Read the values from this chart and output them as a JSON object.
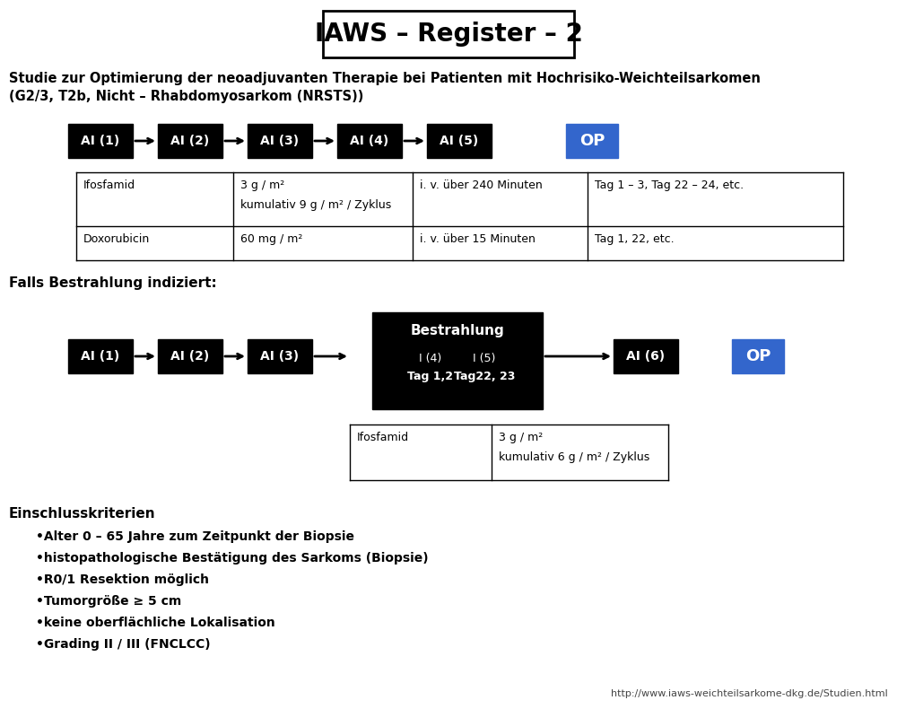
{
  "title": "IAWS – Register – 2",
  "subtitle_line1": "Studie zur Optimierung der neoadjuvanten Therapie bei Patienten mit Hochrisiko-Weichteilsarkomen",
  "subtitle_line2": "(G2/3, T2b, Nicht – Rhabdomyosarkom (NRSTS))",
  "background_color": "#ffffff",
  "scheme1_boxes": [
    "AI (1)",
    "AI (2)",
    "AI (3)",
    "AI (4)",
    "AI (5)"
  ],
  "scheme1_op": "OP",
  "table1_rows": [
    [
      "Ifosfamid",
      "3 g / m²",
      "kumulativ 9 g / m² / Zyklus",
      "i. v. über 240 Minuten",
      "Tag 1 – 3, Tag 22 – 24, etc."
    ],
    [
      "Doxorubicin",
      "60 mg / m²",
      "",
      "i. v. über 15 Minuten",
      "Tag 1, 22, etc."
    ]
  ],
  "falls_text": "Falls Bestrahlung indiziert:",
  "scheme2_boxes": [
    "AI (1)",
    "AI (2)",
    "AI (3)"
  ],
  "bestrahlung_title": "Bestrahlung",
  "scheme2_box_ai6": "AI (6)",
  "scheme2_op": "OP",
  "table2_row": [
    "Ifosfamid",
    "3 g / m²",
    "kumulativ 6 g / m² / Zyklus"
  ],
  "einschluss_title": "Einschlusskriterien",
  "einschluss_items": [
    "Alter 0 – 65 Jahre zum Zeitpunkt der Biopsie",
    "histopathologische Bestätigung des Sarkoms (Biopsie)",
    "R0/1 Resektion möglich",
    "Tumorgröße ≥ 5 cm",
    "keine oberflächliche Lokalisation",
    "Grading II / III (FNCLCC)"
  ],
  "url": "http://www.iaws-weichteilsarkome-dkg.de/Studien.html",
  "box_color": "#000000",
  "box_text_color": "#ffffff",
  "op_color": "#3366cc",
  "op_text_color": "#ffffff"
}
